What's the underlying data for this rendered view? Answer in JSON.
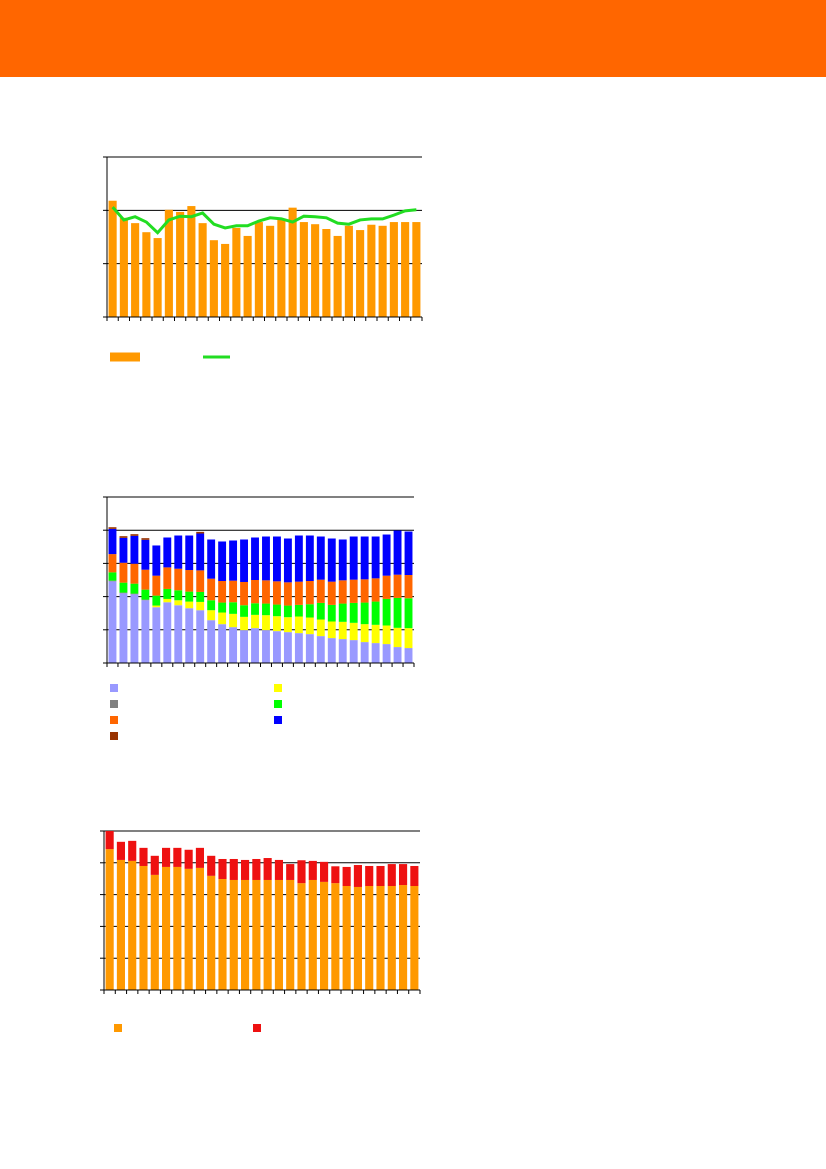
{
  "chart_data": [
    {
      "type": "bar",
      "ylim": [
        0,
        3
      ],
      "yticks": [
        0,
        1,
        2,
        3
      ],
      "grid": true,
      "series": [
        {
          "color": "#ff9900",
          "values": [
            2.18,
            1.86,
            1.76,
            1.59,
            1.48,
            2.01,
            1.97,
            2.08,
            1.76,
            1.44,
            1.37,
            1.67,
            1.52,
            1.78,
            1.71,
            1.82,
            2.05,
            1.78,
            1.74,
            1.65,
            1.52,
            1.71,
            1.63,
            1.73,
            1.71,
            1.78,
            1.78,
            1.78
          ]
        },
        {
          "type": "line",
          "color": "#22dd22",
          "values": [
            2.06,
            1.82,
            1.88,
            1.78,
            1.58,
            1.82,
            1.89,
            1.88,
            1.95,
            1.74,
            1.67,
            1.71,
            1.71,
            1.8,
            1.86,
            1.84,
            1.78,
            1.89,
            1.88,
            1.86,
            1.76,
            1.74,
            1.82,
            1.84,
            1.84,
            1.91,
            1.99,
            2.01
          ]
        }
      ]
    },
    {
      "type": "bar",
      "stacked": true,
      "ylim": [
        0,
        5
      ],
      "yticks": [
        0,
        1,
        2,
        3,
        4,
        5
      ],
      "grid": true,
      "series": [
        {
          "color": "#9999ff",
          "values": [
            2.46,
            2.1,
            2.07,
            1.89,
            1.68,
            1.83,
            1.74,
            1.65,
            1.59,
            1.29,
            1.17,
            1.08,
            0.99,
            1.05,
            0.99,
            0.96,
            0.93,
            0.9,
            0.87,
            0.81,
            0.75,
            0.72,
            0.69,
            0.63,
            0.6,
            0.57,
            0.48,
            0.45
          ]
        },
        {
          "color": "#808080",
          "values": [
            0.02,
            0.02,
            0.02,
            0.02,
            0,
            0,
            0,
            0,
            0,
            0,
            0,
            0,
            0,
            0,
            0,
            0,
            0,
            0,
            0,
            0,
            0,
            0,
            0,
            0,
            0,
            0,
            0,
            0
          ]
        },
        {
          "color": "#ffff00",
          "values": [
            0,
            0,
            0,
            0,
            0.05,
            0.1,
            0.15,
            0.2,
            0.25,
            0.3,
            0.35,
            0.4,
            0.4,
            0.4,
            0.45,
            0.45,
            0.45,
            0.5,
            0.5,
            0.5,
            0.5,
            0.52,
            0.52,
            0.54,
            0.55,
            0.56,
            0.58,
            0.6
          ]
        },
        {
          "color": "#00ff00",
          "values": [
            0.25,
            0.3,
            0.3,
            0.3,
            0.3,
            0.3,
            0.3,
            0.3,
            0.3,
            0.3,
            0.3,
            0.35,
            0.35,
            0.35,
            0.35,
            0.35,
            0.35,
            0.35,
            0.4,
            0.5,
            0.5,
            0.55,
            0.6,
            0.65,
            0.7,
            0.8,
            0.9,
            0.9
          ]
        },
        {
          "color": "#ff6600",
          "values": [
            0.55,
            0.6,
            0.6,
            0.6,
            0.6,
            0.65,
            0.65,
            0.65,
            0.65,
            0.65,
            0.65,
            0.65,
            0.7,
            0.7,
            0.7,
            0.7,
            0.7,
            0.7,
            0.7,
            0.7,
            0.7,
            0.7,
            0.7,
            0.7,
            0.7,
            0.7,
            0.7,
            0.7
          ]
        },
        {
          "color": "#0000ff",
          "values": [
            0.76,
            0.75,
            0.84,
            0.9,
            0.91,
            0.9,
            1.0,
            1.04,
            1.11,
            1.18,
            1.19,
            1.21,
            1.28,
            1.28,
            1.32,
            1.35,
            1.32,
            1.39,
            1.37,
            1.3,
            1.3,
            1.23,
            1.3,
            1.29,
            1.26,
            1.24,
            1.33,
            1.31
          ]
        },
        {
          "color": "#993300",
          "values": [
            0.05,
            0.05,
            0.05,
            0.05,
            0,
            0,
            0,
            0,
            0.05,
            0,
            0,
            0,
            0,
            0,
            0,
            0,
            0,
            0,
            0,
            0,
            0,
            0,
            0,
            0,
            0,
            0,
            0,
            0
          ]
        }
      ]
    },
    {
      "type": "bar",
      "stacked": true,
      "ylim": [
        0,
        5
      ],
      "yticks": [
        0,
        1,
        2,
        3,
        4,
        5
      ],
      "grid": true,
      "series": [
        {
          "color": "#ff9900",
          "values": [
            4.43,
            4.09,
            4.06,
            3.9,
            3.62,
            3.87,
            3.87,
            3.81,
            3.84,
            3.59,
            3.49,
            3.46,
            3.46,
            3.46,
            3.46,
            3.46,
            3.46,
            3.36,
            3.46,
            3.4,
            3.36,
            3.27,
            3.24,
            3.27,
            3.27,
            3.27,
            3.3,
            3.27
          ]
        },
        {
          "color": "#ee1111",
          "values": [
            0.57,
            0.57,
            0.63,
            0.57,
            0.6,
            0.6,
            0.6,
            0.6,
            0.63,
            0.63,
            0.63,
            0.66,
            0.63,
            0.66,
            0.69,
            0.63,
            0.5,
            0.72,
            0.6,
            0.63,
            0.53,
            0.6,
            0.69,
            0.63,
            0.63,
            0.69,
            0.66,
            0.63
          ]
        }
      ]
    }
  ]
}
